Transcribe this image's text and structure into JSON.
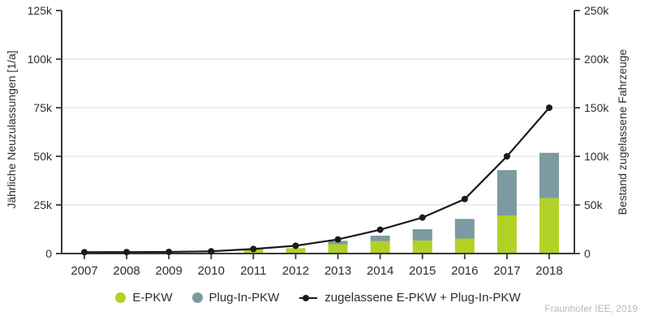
{
  "chart_data": {
    "type": "bar",
    "subtype": "stacked-bars-with-cumulative-line",
    "units_note": "all values in thousands of vehicles (k)",
    "categories": [
      "2007",
      "2008",
      "2009",
      "2010",
      "2011",
      "2012",
      "2013",
      "2014",
      "2015",
      "2016",
      "2017",
      "2018"
    ],
    "series": [
      {
        "name": "E-PKW",
        "kind": "bar",
        "axis": "left",
        "color": "#b2d126",
        "values": [
          0.1,
          0.1,
          0.2,
          0.5,
          2.3,
          2.8,
          4.8,
          6.4,
          6.7,
          7.7,
          19.6,
          28.5
        ]
      },
      {
        "name": "Plug-In-PKW",
        "kind": "bar",
        "axis": "left",
        "color": "#7d99a1",
        "values": [
          0,
          0,
          0,
          0,
          0,
          0,
          1.7,
          2.8,
          5.8,
          10.1,
          23.3,
          23.3
        ]
      },
      {
        "name": "zugelassene E-PKW + Plug-In-PKW",
        "kind": "line",
        "axis": "right",
        "color": "#1a1a1a",
        "values": [
          1.4,
          1.5,
          1.7,
          2.3,
          4.7,
          8,
          14.5,
          24.5,
          37,
          56,
          100,
          150
        ]
      }
    ],
    "left_axis": {
      "label": "Jährliche Neuzulassungen [1/a]",
      "ticks": [
        "0",
        "25k",
        "50k",
        "75k",
        "100k",
        "125k"
      ],
      "tick_values": [
        0,
        25,
        50,
        75,
        100,
        125
      ],
      "max": 125
    },
    "right_axis": {
      "label": "Bestand zugelassene Fahrzeuge",
      "ticks": [
        "0",
        "50k",
        "100k",
        "150k",
        "200k",
        "250k"
      ],
      "tick_values": [
        0,
        50,
        100,
        150,
        200,
        250
      ],
      "max": 250
    },
    "grid": "horizontal-light-gray",
    "legend_position": "bottom-center"
  },
  "colors": {
    "e_pkw_green": "#b2d126",
    "plug_in_slate": "#7d99a1",
    "line_black": "#1a1a1a",
    "axis": "#3a3a3a",
    "grid": "#dcdcdc",
    "text": "#2e2e2e",
    "credit_gray": "#b9b9b9"
  },
  "credit": "Fraunhofer IEE, 2019"
}
